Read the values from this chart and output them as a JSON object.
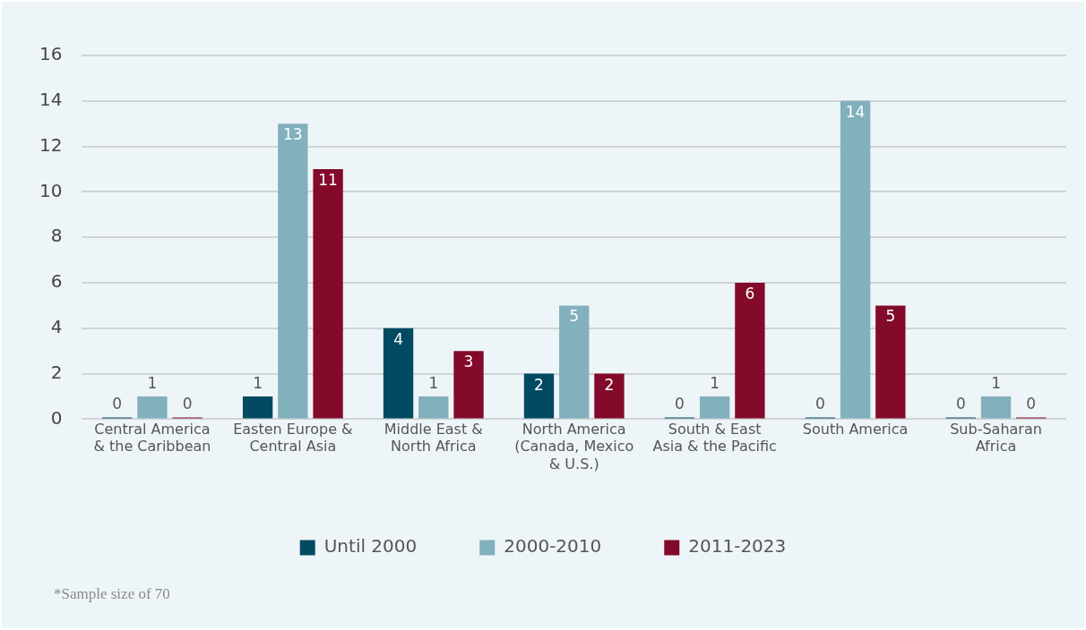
{
  "chart_data": {
    "type": "bar",
    "categories": [
      "Central America & the Caribbean",
      "Easten Europe & Central Asia",
      "Middle East & North Africa",
      "North America (Canada, Mexico & U.S.)",
      "South & East Asia & the Pacific",
      "South America",
      "Sub-Saharan Africa"
    ],
    "series": [
      {
        "name": "Until 2000",
        "color": "#024a62",
        "values": [
          0,
          1,
          4,
          2,
          0,
          0,
          0
        ]
      },
      {
        "name": "2000-2010",
        "color": "#82b0bd",
        "values": [
          1,
          13,
          1,
          5,
          1,
          14,
          1
        ]
      },
      {
        "name": "2011-2023",
        "color": "#830a2a",
        "values": [
          0,
          11,
          3,
          2,
          6,
          5,
          0
        ]
      }
    ],
    "ylim": [
      0,
      16
    ],
    "yticks": [
      0,
      2,
      4,
      6,
      8,
      10,
      12,
      14,
      16
    ],
    "grid": "y",
    "legend": "bottom",
    "data_labels": true,
    "annotations": [
      "*Sample size of 70"
    ]
  }
}
